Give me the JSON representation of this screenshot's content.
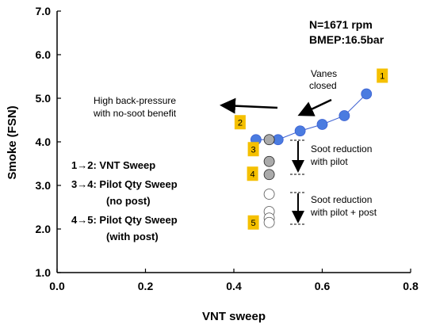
{
  "chart_data": {
    "type": "scatter",
    "xlabel": "VNT sweep",
    "ylabel": "Smoke (FSN)",
    "xlim": [
      0.0,
      0.8
    ],
    "ylim": [
      1.0,
      7.0
    ],
    "xticks": [
      "0.0",
      "0.2",
      "0.4",
      "0.6",
      "0.8"
    ],
    "yticks": [
      "1.0",
      "2.0",
      "3.0",
      "4.0",
      "5.0",
      "6.0",
      "7.0"
    ],
    "grid": false,
    "conditions": [
      "N=1671 rpm",
      "BMEP:16.5bar"
    ],
    "colors": {
      "vnt_marker": "#4a7be0",
      "vnt_line": "#3b5fd1",
      "pilot_nopost_marker": "#aaaaaa",
      "pilot_post_marker": "#ffffff",
      "label_box": "#f5c000"
    },
    "series": [
      {
        "x": [
          0.7,
          0.65,
          0.6,
          0.55,
          0.5,
          0.45
        ],
        "y": [
          5.1,
          4.6,
          4.4,
          4.25,
          4.05,
          4.05
        ]
      },
      {
        "x": [
          0.48,
          0.48,
          0.48
        ],
        "y": [
          4.05,
          3.55,
          3.25
        ]
      },
      {
        "x": [
          0.48,
          0.48,
          0.48,
          0.48
        ],
        "y": [
          2.8,
          2.4,
          2.25,
          2.15
        ]
      }
    ],
    "point_labels": [
      {
        "text": "1",
        "x": 0.7,
        "y": 5.1
      },
      {
        "text": "2",
        "x": 0.45,
        "y": 4.05
      },
      {
        "text": "3",
        "x": 0.48,
        "y": 4.05
      },
      {
        "text": "4",
        "x": 0.48,
        "y": 3.25
      },
      {
        "text": "5",
        "x": 0.48,
        "y": 2.15
      }
    ],
    "annotations": {
      "vanes_closed": [
        "Vanes",
        "closed"
      ],
      "back_pressure": [
        "High back-pressure",
        "with no-soot benefit"
      ],
      "soot_pilot": [
        "Soot reduction",
        "with pilot"
      ],
      "soot_pilot_post": [
        "Soot reduction",
        "with pilot + post"
      ]
    },
    "legend_lines": [
      "1→2: VNT Sweep",
      "3→4: Pilot Qty Sweep",
      "(no post)",
      "4→5: Pilot Qty Sweep",
      "(with post)"
    ]
  }
}
